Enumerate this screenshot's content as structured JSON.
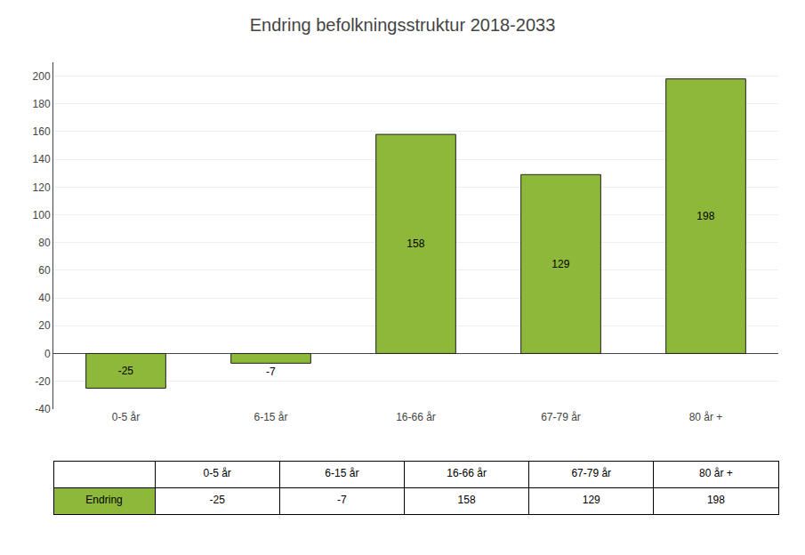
{
  "chart_data": {
    "type": "bar",
    "title": "Endring befolkningsstruktur 2018-2033",
    "categories": [
      "0-5 år",
      "6-15 år",
      "16-66 år",
      "67-79 år",
      "80 år +"
    ],
    "series": [
      {
        "name": "Endring",
        "color": "#8db83a",
        "values": [
          -25,
          -7,
          158,
          129,
          198
        ]
      }
    ],
    "ylim": [
      -40,
      210
    ],
    "yticks": [
      -40,
      -20,
      0,
      20,
      40,
      60,
      80,
      100,
      120,
      140,
      160,
      180,
      200
    ],
    "grid": true,
    "data_labels": true
  }
}
